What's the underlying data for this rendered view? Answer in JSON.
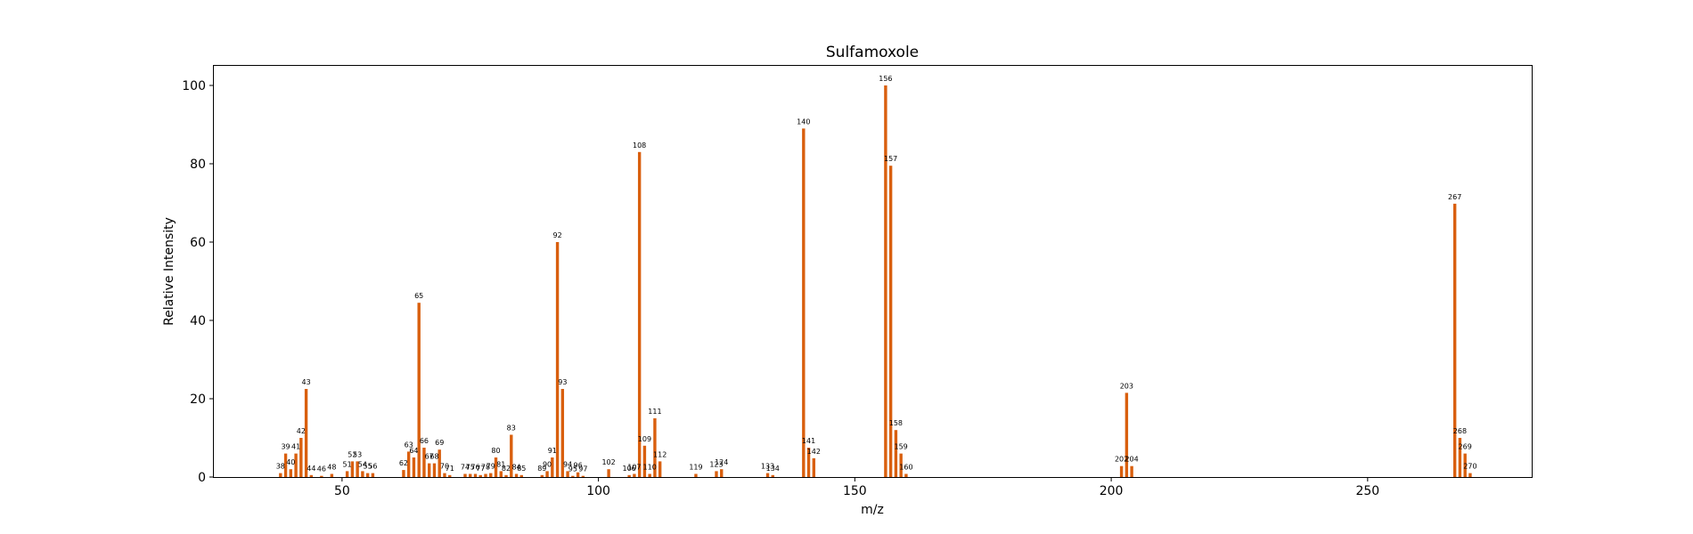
{
  "chart_data": {
    "type": "bar",
    "title": "Sulfamoxole",
    "xlabel": "m/z",
    "ylabel": "Relative Intensity",
    "xlim": [
      25,
      282
    ],
    "ylim": [
      0,
      105
    ],
    "xticks": [
      50,
      100,
      150,
      200,
      250
    ],
    "yticks": [
      0,
      20,
      40,
      60,
      80,
      100
    ],
    "bar_color": "#d95f0e",
    "grid": false,
    "peaks": [
      {
        "mz": 38,
        "intensity": 1.0,
        "label": "38"
      },
      {
        "mz": 39,
        "intensity": 6.0,
        "label": "39"
      },
      {
        "mz": 40,
        "intensity": 2.0,
        "label": "40"
      },
      {
        "mz": 41,
        "intensity": 6.0,
        "label": "41"
      },
      {
        "mz": 42,
        "intensity": 10.0,
        "label": "42"
      },
      {
        "mz": 43,
        "intensity": 22.5,
        "label": "43"
      },
      {
        "mz": 44,
        "intensity": 0.5,
        "label": "44"
      },
      {
        "mz": 46,
        "intensity": 0.3,
        "label": "46"
      },
      {
        "mz": 48,
        "intensity": 0.8,
        "label": "48"
      },
      {
        "mz": 51,
        "intensity": 1.5,
        "label": "51"
      },
      {
        "mz": 52,
        "intensity": 4.0,
        "label": "52"
      },
      {
        "mz": 53,
        "intensity": 4.0,
        "label": "53"
      },
      {
        "mz": 54,
        "intensity": 1.5,
        "label": "54"
      },
      {
        "mz": 55,
        "intensity": 1.0,
        "label": "55"
      },
      {
        "mz": 56,
        "intensity": 1.0,
        "label": "56"
      },
      {
        "mz": 62,
        "intensity": 1.8,
        "label": "62"
      },
      {
        "mz": 63,
        "intensity": 6.5,
        "label": "63"
      },
      {
        "mz": 64,
        "intensity": 5.0,
        "label": "64"
      },
      {
        "mz": 65,
        "intensity": 44.5,
        "label": "65"
      },
      {
        "mz": 66,
        "intensity": 7.5,
        "label": "66"
      },
      {
        "mz": 67,
        "intensity": 3.5,
        "label": "67"
      },
      {
        "mz": 68,
        "intensity": 3.5,
        "label": "68"
      },
      {
        "mz": 69,
        "intensity": 7.0,
        "label": "69"
      },
      {
        "mz": 70,
        "intensity": 1.0,
        "label": "70"
      },
      {
        "mz": 71,
        "intensity": 0.5,
        "label": "71"
      },
      {
        "mz": 74,
        "intensity": 0.8,
        "label": "74"
      },
      {
        "mz": 75,
        "intensity": 0.8,
        "label": "75"
      },
      {
        "mz": 76,
        "intensity": 0.8,
        "label": "76"
      },
      {
        "mz": 77,
        "intensity": 0.5,
        "label": "77"
      },
      {
        "mz": 78,
        "intensity": 0.8,
        "label": "78"
      },
      {
        "mz": 79,
        "intensity": 1.0,
        "label": "79"
      },
      {
        "mz": 80,
        "intensity": 5.0,
        "label": "80"
      },
      {
        "mz": 81,
        "intensity": 1.5,
        "label": "81"
      },
      {
        "mz": 82,
        "intensity": 0.5,
        "label": "82"
      },
      {
        "mz": 83,
        "intensity": 10.8,
        "label": "83"
      },
      {
        "mz": 84,
        "intensity": 0.8,
        "label": "84"
      },
      {
        "mz": 85,
        "intensity": 0.5,
        "label": "85"
      },
      {
        "mz": 89,
        "intensity": 0.5,
        "label": "89"
      },
      {
        "mz": 90,
        "intensity": 1.5,
        "label": "90"
      },
      {
        "mz": 91,
        "intensity": 5.0,
        "label": "91"
      },
      {
        "mz": 92,
        "intensity": 60.0,
        "label": "92"
      },
      {
        "mz": 93,
        "intensity": 22.5,
        "label": "93"
      },
      {
        "mz": 94,
        "intensity": 1.5,
        "label": "94"
      },
      {
        "mz": 95,
        "intensity": 0.3,
        "label": "95"
      },
      {
        "mz": 96,
        "intensity": 1.2,
        "label": "96"
      },
      {
        "mz": 97,
        "intensity": 0.3,
        "label": "97"
      },
      {
        "mz": 102,
        "intensity": 2.0,
        "label": "102"
      },
      {
        "mz": 106,
        "intensity": 0.5,
        "label": "106"
      },
      {
        "mz": 107,
        "intensity": 0.8,
        "label": "107"
      },
      {
        "mz": 108,
        "intensity": 83.0,
        "label": "108"
      },
      {
        "mz": 109,
        "intensity": 8.0,
        "label": "109"
      },
      {
        "mz": 110,
        "intensity": 0.8,
        "label": "110"
      },
      {
        "mz": 111,
        "intensity": 15.0,
        "label": "111"
      },
      {
        "mz": 112,
        "intensity": 4.0,
        "label": "112"
      },
      {
        "mz": 119,
        "intensity": 0.8,
        "label": "119"
      },
      {
        "mz": 123,
        "intensity": 1.5,
        "label": "123"
      },
      {
        "mz": 124,
        "intensity": 2.0,
        "label": "124"
      },
      {
        "mz": 133,
        "intensity": 1.0,
        "label": "133"
      },
      {
        "mz": 134,
        "intensity": 0.5,
        "label": "134"
      },
      {
        "mz": 140,
        "intensity": 89.0,
        "label": "140"
      },
      {
        "mz": 141,
        "intensity": 7.5,
        "label": "141"
      },
      {
        "mz": 142,
        "intensity": 4.8,
        "label": "142"
      },
      {
        "mz": 156,
        "intensity": 100.0,
        "label": "156"
      },
      {
        "mz": 157,
        "intensity": 79.5,
        "label": "157"
      },
      {
        "mz": 158,
        "intensity": 12.0,
        "label": "158"
      },
      {
        "mz": 159,
        "intensity": 6.0,
        "label": "159"
      },
      {
        "mz": 160,
        "intensity": 0.8,
        "label": "160"
      },
      {
        "mz": 202,
        "intensity": 2.8,
        "label": "202"
      },
      {
        "mz": 203,
        "intensity": 21.5,
        "label": "203"
      },
      {
        "mz": 204,
        "intensity": 2.8,
        "label": "204"
      },
      {
        "mz": 267,
        "intensity": 69.8,
        "label": "267"
      },
      {
        "mz": 268,
        "intensity": 10.0,
        "label": "268"
      },
      {
        "mz": 269,
        "intensity": 6.0,
        "label": "269"
      },
      {
        "mz": 270,
        "intensity": 1.0,
        "label": "270"
      }
    ]
  }
}
